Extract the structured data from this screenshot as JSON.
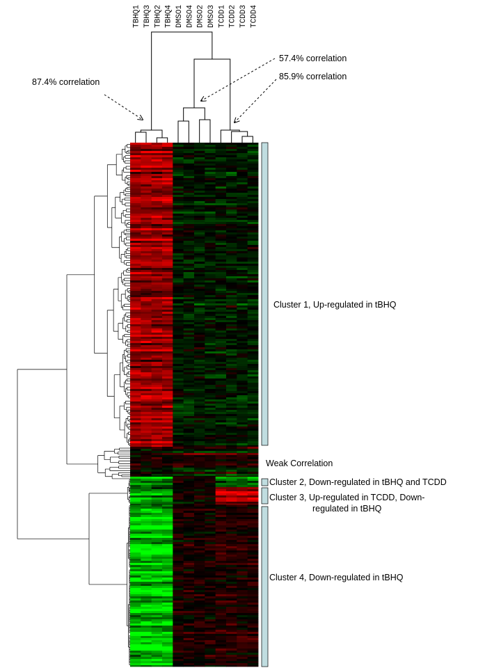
{
  "chart_data": {
    "type": "heatmap",
    "columns": [
      "TBHQ1",
      "TBHQ3",
      "TBHQ2",
      "TBHQ4",
      "DMSO1",
      "DMSO4",
      "DMSO2",
      "DMSO3",
      "TCDD1",
      "TCDD2",
      "TCDD3",
      "TCDD4"
    ],
    "colors": {
      "up": "#ff1a1a",
      "down": "#1aff1a",
      "neutral": "#000000",
      "cluster_bar": "#c0dde0",
      "dendrogram": "#000000"
    },
    "annotations": [
      {
        "id": "tbhq",
        "text": "87.4% correlation"
      },
      {
        "id": "dmso",
        "text": "57.4% correlation"
      },
      {
        "id": "tcdd",
        "text": "85.9% correlation"
      }
    ],
    "clusters": [
      {
        "id": "c1",
        "label": "Cluster 1, Up-regulated in tBHQ",
        "label_lines": [
          "Cluster 1, Up-regulated in tBHQ"
        ],
        "group_means": {
          "TBHQ": 0.6,
          "DMSO": -0.1,
          "TCDD": -0.1
        }
      },
      {
        "id": "weak",
        "label": "Weak Correlation",
        "label_lines": [
          "Weak Correlation"
        ],
        "group_means": {
          "TBHQ": 0.05,
          "DMSO": 0.0,
          "TCDD": 0.0
        }
      },
      {
        "id": "c2",
        "label": "Cluster 2, Down-regulated in tBHQ and TCDD",
        "label_lines": [
          "Cluster 2, Down-regulated in tBHQ and TCDD"
        ],
        "group_means": {
          "TBHQ": -0.6,
          "DMSO": 0.1,
          "TCDD": -0.5
        }
      },
      {
        "id": "c3",
        "label": "Cluster 3, Up-regulated in TCDD, Down-regulated in tBHQ",
        "label_lines": [
          "Cluster 3, Up-regulated in TCDD, Down-",
          "regulated in tBHQ"
        ],
        "group_means": {
          "TBHQ": -0.6,
          "DMSO": 0.05,
          "TCDD": 0.8
        }
      },
      {
        "id": "c4",
        "label": "Cluster 4, Down-regulated in tBHQ",
        "label_lines": [
          "Cluster 4, Down-regulated in tBHQ"
        ],
        "group_means": {
          "TBHQ": -0.8,
          "DMSO": 0.1,
          "TCDD": 0.15
        }
      }
    ]
  }
}
